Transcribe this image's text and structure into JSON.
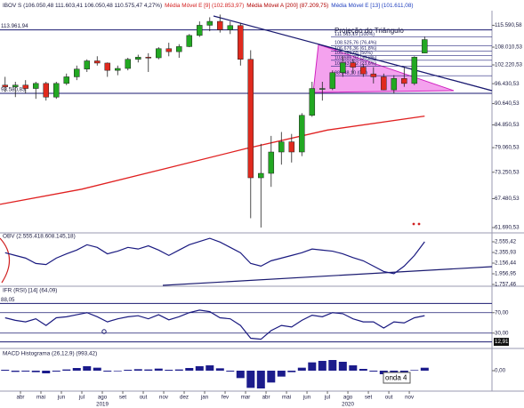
{
  "chart_data": [
    {
      "type": "candlestick",
      "title": "IBOV S (106.050,48 111.603,41 106.050,48 110.575,47 4,27%)",
      "indicators": [
        {
          "name": "Média Móvel E [9] (102.853,97)",
          "color": "#d42020"
        },
        {
          "name": "Média Móvel A [200] (87.209,75)",
          "color": "#b00000"
        },
        {
          "name": "Média Móvel E [13] (101.611,08)",
          "color": "#1f3fbf"
        }
      ],
      "log_scale": true,
      "xlim": [
        2,
        26.04
      ],
      "x": [
        2.25,
        2.75,
        3.25,
        3.75,
        4.25,
        4.75,
        5.25,
        5.75,
        6.25,
        6.75,
        7.25,
        7.75,
        8.25,
        8.75,
        9.25,
        9.75,
        10.25,
        10.75,
        11.25,
        11.75,
        12.25,
        12.75,
        13.25,
        13.75,
        14.25,
        14.75,
        15.25,
        15.75,
        16.25,
        16.75,
        17.25,
        17.75,
        18.25,
        18.75,
        19.25,
        19.75,
        20.25,
        20.75,
        21.25,
        21.75,
        22.25,
        22.75
      ],
      "ohlc": [
        [
          96000,
          98500,
          94000,
          95500
        ],
        [
          95500,
          97000,
          92500,
          96000
        ],
        [
          96000,
          97500,
          93500,
          95000
        ],
        [
          95000,
          97000,
          92000,
          96500
        ],
        [
          96500,
          97000,
          91500,
          92500
        ],
        [
          92500,
          97000,
          92000,
          96500
        ],
        [
          96500,
          99500,
          96000,
          98500
        ],
        [
          98500,
          102000,
          97500,
          100900
        ],
        [
          100900,
          104000,
          100000,
          103500
        ],
        [
          103500,
          105000,
          102000,
          102800
        ],
        [
          102800,
          103000,
          98500,
          100500
        ],
        [
          100500,
          102000,
          99000,
          101100
        ],
        [
          101100,
          104500,
          100500,
          104000
        ],
        [
          104000,
          105500,
          103000,
          104700
        ],
        [
          104700,
          106000,
          100000,
          104500
        ],
        [
          104500,
          108000,
          104000,
          107500
        ],
        [
          107500,
          109500,
          105000,
          106500
        ],
        [
          106500,
          109000,
          104500,
          108200
        ],
        [
          108200,
          112500,
          108000,
          112000
        ],
        [
          112000,
          117000,
          111500,
          115600
        ],
        [
          115600,
          118500,
          113500,
          117000
        ],
        [
          117000,
          119500,
          113000,
          114000
        ],
        [
          114000,
          117000,
          112500,
          115500
        ],
        [
          115500,
          116500,
          102000,
          104000
        ],
        [
          104000,
          107000,
          63500,
          72000
        ],
        [
          72000,
          80000,
          61700,
          73000
        ],
        [
          73000,
          82000,
          70000,
          78000
        ],
        [
          78000,
          83000,
          75000,
          80500
        ],
        [
          80500,
          82500,
          75500,
          78000
        ],
        [
          78000,
          88000,
          77000,
          87400
        ],
        [
          87400,
          97000,
          87000,
          95000
        ],
        [
          95000,
          97000,
          91500,
          95000
        ],
        [
          95000,
          100500,
          94500,
          99800
        ],
        [
          99800,
          105000,
          98500,
          102900
        ],
        [
          102900,
          104000,
          99500,
          101500
        ],
        [
          101500,
          102500,
          98500,
          99400
        ],
        [
          99400,
          101500,
          96500,
          98500
        ],
        [
          98500,
          99500,
          94500,
          94600
        ],
        [
          94600,
          99000,
          93500,
          98000
        ],
        [
          98000,
          101500,
          95500,
          96500
        ],
        [
          96500,
          105000,
          96000,
          104700
        ],
        [
          106050.48,
          111603.41,
          106050.48,
          110575.47
        ]
      ],
      "up_color": "#22a822",
      "down_color": "#e02a1e",
      "ylim": [
        60680,
        120960
      ],
      "yticks": [
        {
          "value": 115590.58,
          "label": "115.590,58"
        },
        {
          "value": 108010.53,
          "label": "108.010,53"
        },
        {
          "value": 102220.53,
          "label": "102.220,53"
        },
        {
          "value": 96430.53,
          "label": "96.430,53"
        },
        {
          "value": 90640.53,
          "label": "90.640,53"
        },
        {
          "value": 84850.53,
          "label": "84.850,53"
        },
        {
          "value": 79060.53,
          "label": "79.060,53"
        },
        {
          "value": 73250.53,
          "label": "73.250,53"
        },
        {
          "value": 67480.53,
          "label": "67.480,53"
        },
        {
          "value": 61690.53,
          "label": "61.690,53"
        }
      ],
      "series": [
        {
          "color": "#e02020",
          "x": [
            2,
            6,
            10,
            14,
            18,
            22.75
          ],
          "values": [
            66300,
            69500,
            74000,
            78800,
            83500,
            87200
          ]
        }
      ],
      "hlines": [
        {
          "value": 113961.94,
          "label": "113.961,94"
        },
        {
          "value": 93580.83,
          "label": "93.580,83"
        }
      ],
      "fib_levels": [
        {
          "value": 111515.19,
          "label": "111.515,19 (100%)"
        },
        {
          "value": 108525.76,
          "label": "108.525,76 (76,4%)"
        },
        {
          "value": 106676.36,
          "label": "106.676,36 (61,8%)"
        },
        {
          "value": 105181.65,
          "label": "105.181,65 (50%)"
        },
        {
          "value": 103686.93,
          "label": "103.686,93 (38,2%)"
        },
        {
          "value": 101837.52,
          "label": "101.837,52 (23,6%)"
        },
        {
          "value": 98848.1,
          "label": "98.848,10 (0%)"
        }
      ],
      "annotation": "Projeção do Triângulo"
    },
    {
      "type": "line",
      "title": "OBV (2.555.418.608.145,18)",
      "color": "#1a1a80",
      "xlim": [
        2,
        26.04
      ],
      "x": [
        2.25,
        2.75,
        3.25,
        3.75,
        4.25,
        4.75,
        5.25,
        5.75,
        6.25,
        6.75,
        7.25,
        7.75,
        8.25,
        8.75,
        9.25,
        9.75,
        10.25,
        10.75,
        11.25,
        11.75,
        12.25,
        12.75,
        13.25,
        13.75,
        14.25,
        14.75,
        15.25,
        15.75,
        16.25,
        16.75,
        17.25,
        17.75,
        18.25,
        18.75,
        19.25,
        19.75,
        20.25,
        20.75,
        21.25,
        21.75,
        22.25,
        22.75
      ],
      "values": [
        2350,
        2300,
        2250,
        2150,
        2130,
        2250,
        2330,
        2400,
        2500,
        2450,
        2330,
        2380,
        2450,
        2420,
        2480,
        2400,
        2300,
        2400,
        2500,
        2560,
        2620,
        2550,
        2450,
        2350,
        2150,
        2100,
        2200,
        2250,
        2300,
        2350,
        2420,
        2400,
        2380,
        2330,
        2260,
        2200,
        2100,
        2000,
        1960,
        2100,
        2300,
        2555.42
      ],
      "ylim": [
        1724,
        2705
      ],
      "yticks": [
        {
          "value": 2555.42,
          "label": "2.555,42"
        },
        {
          "value": 2355.93,
          "label": "2.355,93"
        },
        {
          "value": 2156.44,
          "label": "2.156,44"
        },
        {
          "value": 1956.95,
          "label": "1.956,95"
        },
        {
          "value": 1757.46,
          "label": "1.757,46"
        }
      ]
    },
    {
      "type": "line",
      "title": "IFR (RSI) [14] (64,09)",
      "color": "#1a1a80",
      "xlim": [
        2,
        26.04
      ],
      "x": [
        2.25,
        2.75,
        3.25,
        3.75,
        4.25,
        4.75,
        5.25,
        5.75,
        6.25,
        6.75,
        7.25,
        7.75,
        8.25,
        8.75,
        9.25,
        9.75,
        10.25,
        10.75,
        11.25,
        11.75,
        12.25,
        12.75,
        13.25,
        13.75,
        14.25,
        14.75,
        15.25,
        15.75,
        16.25,
        16.75,
        17.25,
        17.75,
        18.25,
        18.75,
        19.25,
        19.75,
        20.25,
        20.75,
        21.25,
        21.75,
        22.25,
        22.75
      ],
      "values": [
        60,
        55,
        52,
        58,
        45,
        60,
        62,
        66,
        70,
        62,
        52,
        58,
        62,
        64,
        58,
        66,
        56,
        62,
        70,
        75,
        72,
        60,
        58,
        45,
        20,
        18,
        35,
        45,
        42,
        55,
        65,
        62,
        70,
        68,
        58,
        52,
        52,
        40,
        52,
        50,
        60,
        64.09
      ],
      "ylim": [
        0,
        120
      ],
      "yticks": [
        {
          "value": 70,
          "label": "70,00"
        },
        {
          "value": 30,
          "label": "30,00"
        }
      ],
      "hlines": [
        {
          "value": 88.05,
          "label": "88,05"
        }
      ],
      "level_marker": {
        "value": 12.91,
        "label": "12,91"
      }
    },
    {
      "type": "histogram",
      "title": "MACD Histograma (26,12,9) (993,42)",
      "color": "#1c1c8c",
      "xlim": [
        2,
        26.04
      ],
      "x": [
        2.25,
        2.75,
        3.25,
        3.75,
        4.25,
        4.75,
        5.25,
        5.75,
        6.25,
        6.75,
        7.25,
        7.75,
        8.25,
        8.75,
        9.25,
        9.75,
        10.25,
        10.75,
        11.25,
        11.75,
        12.25,
        12.75,
        13.25,
        13.75,
        14.25,
        14.75,
        15.25,
        15.75,
        16.25,
        16.75,
        17.25,
        17.75,
        18.25,
        18.75,
        19.25,
        19.75,
        20.25,
        20.75,
        21.25,
        21.75,
        22.25,
        22.75
      ],
      "values": [
        300,
        -400,
        -300,
        -500,
        -900,
        -300,
        400,
        900,
        1500,
        1000,
        -300,
        -200,
        300,
        500,
        400,
        700,
        300,
        400,
        900,
        1500,
        1800,
        800,
        -300,
        -2500,
        -5800,
        -6000,
        -4000,
        -2000,
        -500,
        1000,
        2800,
        3300,
        3600,
        3000,
        1800,
        600,
        -300,
        -1200,
        -1000,
        -800,
        200,
        993.42
      ],
      "ylim": [
        -6900,
        7200
      ],
      "yticks": [
        {
          "value": 0,
          "label": "0,00"
        }
      ],
      "annotation": "onda 4",
      "xticks": [
        {
          "value": 3,
          "label": "abr"
        },
        {
          "value": 4,
          "label": "mai"
        },
        {
          "value": 5,
          "label": "jun"
        },
        {
          "value": 6,
          "label": "jul"
        },
        {
          "value": 7,
          "label": "ago"
        },
        {
          "value": 8,
          "label": "set"
        },
        {
          "value": 9,
          "label": "out"
        },
        {
          "value": 10,
          "label": "nov"
        },
        {
          "value": 11,
          "label": "dez"
        },
        {
          "value": 12,
          "label": "jan"
        },
        {
          "value": 13,
          "label": "fev"
        },
        {
          "value": 14,
          "label": "mar"
        },
        {
          "value": 15,
          "label": "abr"
        },
        {
          "value": 16,
          "label": "mai"
        },
        {
          "value": 17,
          "label": "jun"
        },
        {
          "value": 18,
          "label": "jul"
        },
        {
          "value": 19,
          "label": "ago"
        },
        {
          "value": 20,
          "label": "set"
        },
        {
          "value": 21,
          "label": "out"
        },
        {
          "value": 22,
          "label": "nov"
        }
      ],
      "year_labels": [
        {
          "value": 7,
          "label": "2019"
        },
        {
          "value": 19,
          "label": "2020"
        }
      ]
    }
  ]
}
